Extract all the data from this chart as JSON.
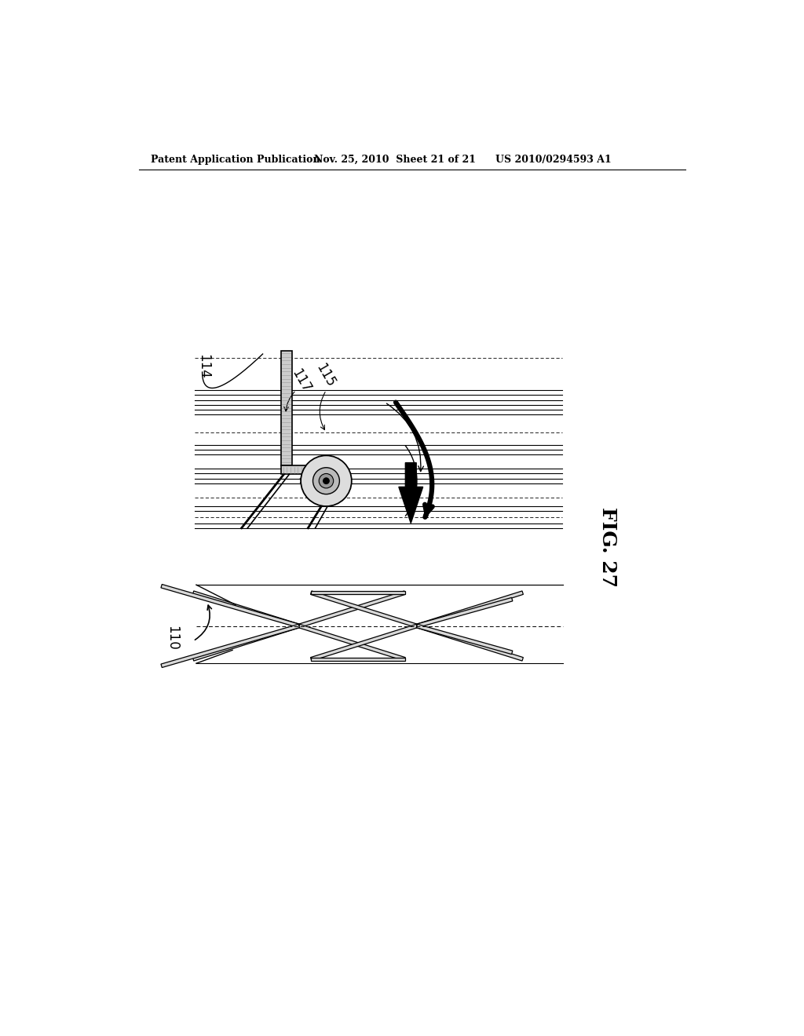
{
  "bg_color": "#ffffff",
  "header_text1": "Patent Application Publication",
  "header_text2": "Nov. 25, 2010  Sheet 21 of 21",
  "header_text3": "US 2010/0294593 A1",
  "fig_label": "FIG. 27",
  "label_114": "114",
  "label_115": "115",
  "label_117": "117",
  "label_110": "110",
  "line_color": "#000000"
}
